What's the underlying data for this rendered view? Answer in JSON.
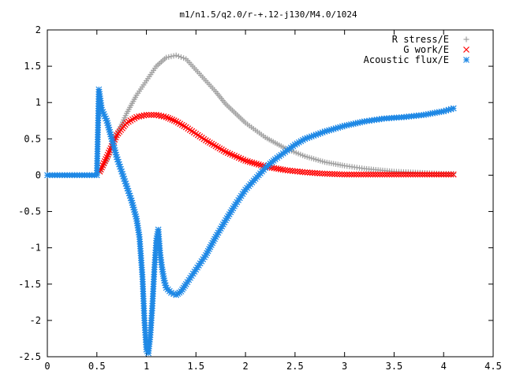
{
  "chart_data": {
    "type": "scatter",
    "title": "m1/n1.5/q2.0/r-+.12-j130/M4.0/1024",
    "xlabel": "",
    "ylabel": "",
    "xlim": [
      0,
      4.5
    ],
    "ylim": [
      -2.5,
      2
    ],
    "xticks": [
      "0",
      "0.5",
      "1",
      "1.5",
      "2",
      "2.5",
      "3",
      "3.5",
      "4",
      "4.5"
    ],
    "yticks": [
      "2",
      "1.5",
      "1",
      "0.5",
      "0",
      "-0.5",
      "-1",
      "-1.5",
      "-2",
      "-2.5"
    ],
    "grid": false,
    "legend_position": "top-right",
    "series": [
      {
        "name": "R stress/E",
        "marker": "plus",
        "color": "#a0a0a0",
        "x": [
          0.53,
          0.6,
          0.7,
          0.8,
          0.9,
          1.0,
          1.1,
          1.2,
          1.3,
          1.4,
          1.5,
          1.6,
          1.7,
          1.8,
          2.0,
          2.2,
          2.4,
          2.6,
          2.8,
          3.0,
          3.2,
          3.5,
          4.0,
          4.1
        ],
        "y": [
          0.05,
          0.2,
          0.55,
          0.85,
          1.1,
          1.3,
          1.5,
          1.62,
          1.65,
          1.6,
          1.45,
          1.3,
          1.15,
          0.98,
          0.72,
          0.52,
          0.37,
          0.26,
          0.18,
          0.13,
          0.09,
          0.05,
          0.02,
          0.02
        ]
      },
      {
        "name": "G work/E",
        "marker": "cross",
        "color": "#ff0000",
        "x": [
          0.53,
          0.6,
          0.7,
          0.8,
          0.9,
          1.0,
          1.1,
          1.2,
          1.3,
          1.4,
          1.5,
          1.6,
          1.8,
          2.0,
          2.2,
          2.4,
          2.6,
          2.8,
          3.0,
          3.5,
          4.0,
          4.1
        ],
        "y": [
          0.05,
          0.25,
          0.55,
          0.72,
          0.8,
          0.83,
          0.83,
          0.8,
          0.74,
          0.66,
          0.57,
          0.48,
          0.32,
          0.2,
          0.12,
          0.07,
          0.04,
          0.02,
          0.01,
          0.01,
          0.01,
          0.01
        ]
      },
      {
        "name": "Acoustic flux/E",
        "marker": "star",
        "color": "#1e88e5",
        "x": [
          0.0,
          0.1,
          0.2,
          0.3,
          0.4,
          0.5,
          0.52,
          0.55,
          0.6,
          0.65,
          0.7,
          0.75,
          0.8,
          0.85,
          0.9,
          0.93,
          0.96,
          0.98,
          1.0,
          1.02,
          1.04,
          1.06,
          1.08,
          1.1,
          1.12,
          1.14,
          1.16,
          1.18,
          1.2,
          1.25,
          1.3,
          1.35,
          1.4,
          1.5,
          1.6,
          1.7,
          1.8,
          1.9,
          2.0,
          2.1,
          2.2,
          2.3,
          2.4,
          2.5,
          2.6,
          2.8,
          3.0,
          3.2,
          3.4,
          3.6,
          3.8,
          4.0,
          4.1
        ],
        "y": [
          0.0,
          0.0,
          0.0,
          0.0,
          0.0,
          0.0,
          1.18,
          0.9,
          0.75,
          0.5,
          0.25,
          0.05,
          -0.15,
          -0.35,
          -0.6,
          -0.85,
          -1.4,
          -2.0,
          -2.4,
          -2.45,
          -2.2,
          -1.8,
          -1.3,
          -0.9,
          -0.75,
          -1.1,
          -1.3,
          -1.45,
          -1.55,
          -1.62,
          -1.65,
          -1.6,
          -1.5,
          -1.3,
          -1.1,
          -0.85,
          -0.62,
          -0.4,
          -0.2,
          -0.05,
          0.1,
          0.22,
          0.32,
          0.42,
          0.5,
          0.6,
          0.68,
          0.74,
          0.78,
          0.8,
          0.83,
          0.88,
          0.92
        ]
      }
    ]
  }
}
